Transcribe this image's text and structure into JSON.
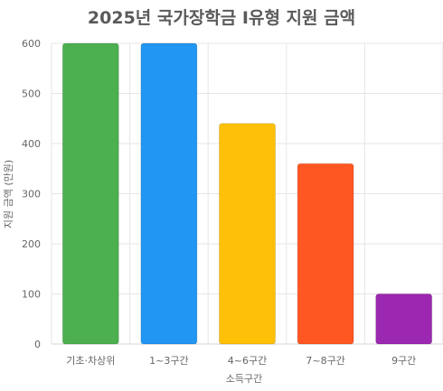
{
  "chart_data": {
    "type": "bar",
    "title": "2025년 국가장학금 I유형 지원 금액",
    "xlabel": "소득구간",
    "ylabel": "지원 금액 (만원)",
    "categories": [
      "기초·차상위",
      "1~3구간",
      "4~6구간",
      "7~8구간",
      "9구간"
    ],
    "values": [
      600,
      600,
      440,
      360,
      100
    ],
    "colors": [
      "#4caf50",
      "#2196f3",
      "#ffc107",
      "#ff5722",
      "#9c27b0"
    ],
    "ylim": [
      0,
      600
    ],
    "yticks": [
      0,
      100,
      200,
      300,
      400,
      500,
      600
    ],
    "grid": true
  }
}
